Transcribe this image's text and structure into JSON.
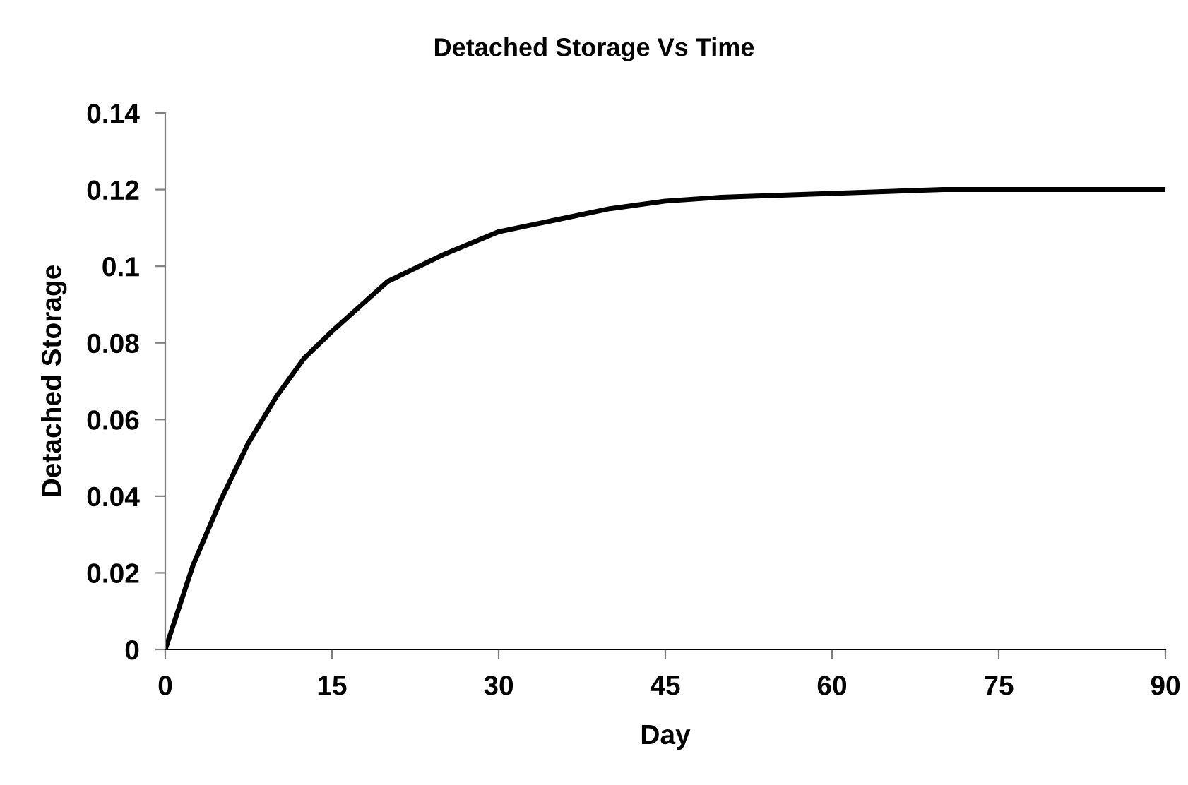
{
  "chart_data": {
    "type": "line",
    "title": "Detached Storage Vs Time",
    "xlabel": "Day",
    "ylabel": "Detached Storage",
    "series": [
      {
        "color": "#000000",
        "x": [
          0,
          2.5,
          5,
          7.5,
          10,
          12.5,
          15,
          20,
          25,
          30,
          35,
          40,
          45,
          50,
          60,
          70,
          80,
          90
        ],
        "values": [
          0,
          0.022,
          0.039,
          0.054,
          0.066,
          0.076,
          0.083,
          0.096,
          0.103,
          0.109,
          0.112,
          0.115,
          0.117,
          0.118,
          0.119,
          0.12,
          0.12,
          0.12
        ]
      }
    ],
    "xlim": [
      0,
      90
    ],
    "xticks": [
      0,
      15,
      30,
      45,
      60,
      75,
      90
    ],
    "ylim": [
      0,
      0.14
    ],
    "yticks": [
      0,
      0.02,
      0.04,
      0.06,
      0.08,
      {
        "value": 0.1,
        "label": "0.1"
      },
      0.12,
      0.14
    ],
    "grid": false,
    "legend": false,
    "marker": "none",
    "line_style": "solid"
  }
}
